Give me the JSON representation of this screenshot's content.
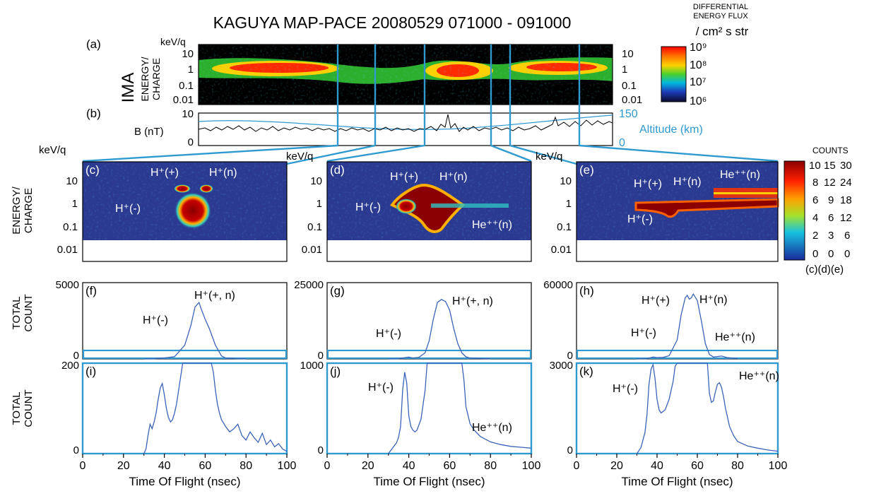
{
  "header": {
    "title": "KAGUYA MAP-PACE  20080529  071000 - 091000",
    "flux_label_1": "DIFFERENTIAL",
    "flux_label_2": "ENERGY FLUX",
    "flux_unit": "/ cm² s str",
    "flux_ticks": [
      "10⁹",
      "10⁸",
      "10⁷",
      "10⁶"
    ]
  },
  "colors": {
    "series_line": "#3a63b8",
    "frame_blue": "#2e9ad0",
    "altitude": "#2e9ad0",
    "spectrogram_bg": "#000000",
    "zoom_bg": "#2b3990"
  },
  "panel_a": {
    "tag": "(a)",
    "instrument": "IMA",
    "ylabel_1": "ENERGY/",
    "ylabel_2": "CHARGE",
    "unit": "keV/q",
    "yticks_left": [
      "10",
      "1",
      "0.1",
      "0.01"
    ],
    "yticks_right": [
      "10",
      "1",
      "0.1",
      "0.01"
    ]
  },
  "panel_b": {
    "tag": "(b)",
    "ylabel": "B (nT)",
    "yticks_left": [
      "10",
      "0"
    ],
    "yticks_right": [
      "150",
      "0"
    ],
    "right_label": "Altitude (km)"
  },
  "spectra": {
    "unit": "keV/q",
    "ylabel_1": "ENERGY/",
    "ylabel_2": "CHARGE",
    "yticks": [
      "10",
      "1",
      "0.1",
      "0.01"
    ],
    "panels": [
      {
        "tag": "(c)",
        "labels": [
          "H⁺(+)",
          "H⁺(n)",
          "H⁺(-)"
        ]
      },
      {
        "tag": "(d)",
        "labels": [
          "H⁺(+)",
          "H⁺(n)",
          "H⁺(-)",
          "He⁺⁺(n)"
        ]
      },
      {
        "tag": "(e)",
        "labels": [
          "H⁺(+)",
          "H⁺(n)",
          "He⁺⁺(n)",
          "H⁺(-)"
        ]
      }
    ]
  },
  "counts_bar": {
    "title": "COUNTS",
    "columns": [
      [
        "10",
        "8",
        "6",
        "4",
        "2",
        "0"
      ],
      [
        "15",
        "12",
        "9",
        "6",
        "3",
        "0"
      ],
      [
        "30",
        "24",
        "18",
        "12",
        "6",
        "0"
      ]
    ],
    "footer": "(c)(d)(e)"
  },
  "chart_data": [
    {
      "type": "line",
      "id": "f",
      "tag": "(f)",
      "ylabel": "TOTAL COUNT",
      "ylim": [
        0,
        5000
      ],
      "yticks": [
        "5000",
        "0"
      ],
      "xlim": [
        0,
        100
      ],
      "x": [
        30,
        35,
        38,
        40,
        45,
        50,
        53,
        55,
        57,
        58,
        60,
        62,
        65,
        68,
        70,
        75,
        80
      ],
      "values": [
        0,
        10,
        40,
        60,
        150,
        900,
        2200,
        3400,
        3700,
        3300,
        2600,
        2000,
        900,
        200,
        60,
        20,
        10
      ],
      "annotations": [
        "H⁺(+, n)",
        "H⁺(-)"
      ]
    },
    {
      "type": "line",
      "id": "g",
      "tag": "(g)",
      "ylabel": "",
      "ylim": [
        0,
        25000
      ],
      "yticks": [
        "25000",
        "0"
      ],
      "xlim": [
        0,
        100
      ],
      "x": [
        30,
        35,
        38,
        40,
        42,
        45,
        48,
        50,
        52,
        54,
        56,
        58,
        60,
        62,
        64,
        66,
        68,
        70,
        75,
        80
      ],
      "values": [
        0,
        50,
        400,
        600,
        300,
        500,
        2000,
        6000,
        13000,
        18500,
        19500,
        18800,
        16000,
        10000,
        5000,
        2000,
        700,
        300,
        120,
        50
      ],
      "annotations": [
        "H⁺(+, n)",
        "H⁺(-)"
      ]
    },
    {
      "type": "line",
      "id": "h",
      "tag": "(h)",
      "ylabel": "",
      "ylim": [
        0,
        60000
      ],
      "yticks": [
        "60000",
        "0"
      ],
      "xlim": [
        0,
        100
      ],
      "x": [
        30,
        35,
        38,
        40,
        43,
        46,
        50,
        52,
        54,
        55,
        56,
        57,
        58,
        60,
        62,
        64,
        66,
        68,
        70,
        72,
        75,
        80
      ],
      "values": [
        0,
        200,
        1500,
        1000,
        1200,
        2500,
        15000,
        35000,
        48000,
        50000,
        47000,
        48000,
        51000,
        46000,
        30000,
        12000,
        3500,
        1500,
        1900,
        2300,
        1000,
        300
      ],
      "annotations": [
        "H⁺(+)",
        "H⁺(n)",
        "H⁺(-)",
        "He⁺⁺(n)"
      ]
    },
    {
      "type": "line",
      "id": "i",
      "tag": "(i)",
      "ylabel": "TOTAL COUNT",
      "xlabel": "Time Of Flight (nsec)",
      "ylim": [
        0,
        200
      ],
      "yticks": [
        "200",
        "0"
      ],
      "xticks": [
        "0",
        "20",
        "40",
        "60",
        "80",
        "100"
      ],
      "xlim": [
        0,
        100
      ],
      "x": [
        30,
        31,
        32,
        33,
        34,
        35,
        36,
        37,
        38,
        39,
        40,
        41,
        42,
        43,
        44,
        45,
        46,
        47,
        48,
        49,
        50,
        51,
        52,
        53,
        54,
        55,
        56,
        57,
        58,
        59,
        60,
        61,
        62,
        63,
        64,
        65,
        66,
        67,
        68,
        70,
        72,
        74,
        76,
        78,
        80,
        82,
        84,
        86,
        88,
        90,
        92,
        94,
        96,
        98,
        100
      ],
      "values": [
        0,
        10,
        40,
        65,
        55,
        70,
        90,
        120,
        145,
        155,
        130,
        100,
        80,
        70,
        75,
        90,
        110,
        140,
        170,
        200,
        200,
        200,
        200,
        200,
        200,
        200,
        200,
        200,
        200,
        200,
        200,
        200,
        200,
        200,
        180,
        140,
        110,
        90,
        75,
        60,
        48,
        55,
        65,
        40,
        30,
        48,
        35,
        25,
        45,
        20,
        30,
        15,
        22,
        10,
        5
      ]
    },
    {
      "type": "line",
      "id": "j",
      "tag": "(j)",
      "xlabel": "Time Of Flight (nsec)",
      "ylim": [
        0,
        1000
      ],
      "yticks": [
        "1000",
        "0"
      ],
      "xticks": [
        "0",
        "20",
        "40",
        "60",
        "80",
        "100"
      ],
      "xlim": [
        0,
        100
      ],
      "x": [
        30,
        32,
        34,
        35,
        36,
        37,
        38,
        39,
        40,
        41,
        42,
        43,
        44,
        46,
        48,
        49,
        50,
        52,
        54,
        56,
        58,
        60,
        62,
        64,
        66,
        67,
        68,
        70,
        72,
        75,
        80,
        85,
        90,
        95,
        100
      ],
      "values": [
        0,
        60,
        120,
        180,
        300,
        700,
        900,
        780,
        420,
        300,
        260,
        240,
        260,
        380,
        700,
        1000,
        1000,
        1000,
        1000,
        1000,
        1000,
        1000,
        1000,
        1000,
        1000,
        820,
        520,
        330,
        260,
        190,
        130,
        100,
        80,
        70,
        60
      ],
      "annotations": [
        "H⁺(-)",
        "He⁺⁺(n)"
      ]
    },
    {
      "type": "line",
      "id": "k",
      "tag": "(k)",
      "xlabel": "Time Of Flight (nsec)",
      "ylim": [
        0,
        3000
      ],
      "yticks": [
        "3000",
        "0"
      ],
      "xticks": [
        "0",
        "20",
        "40",
        "60",
        "80",
        "100"
      ],
      "xlim": [
        0,
        100
      ],
      "x": [
        30,
        32,
        34,
        35,
        36,
        37,
        38,
        39,
        40,
        41,
        42,
        44,
        46,
        48,
        49,
        50,
        52,
        54,
        56,
        58,
        60,
        62,
        64,
        65,
        66,
        67,
        68,
        69,
        70,
        71,
        72,
        73,
        74,
        75,
        76,
        78,
        80,
        85,
        90,
        95,
        100
      ],
      "values": [
        0,
        200,
        700,
        1300,
        2300,
        2800,
        2950,
        2500,
        1800,
        1450,
        1350,
        1450,
        1800,
        2400,
        2900,
        3000,
        3000,
        3000,
        3000,
        3000,
        3000,
        3000,
        3000,
        3000,
        2000,
        1700,
        1750,
        2050,
        2300,
        2350,
        2200,
        1900,
        1500,
        1200,
        900,
        600,
        400,
        250,
        180,
        120,
        80
      ],
      "annotations": [
        "H⁺(-)",
        "He⁺⁺(n)"
      ]
    }
  ]
}
